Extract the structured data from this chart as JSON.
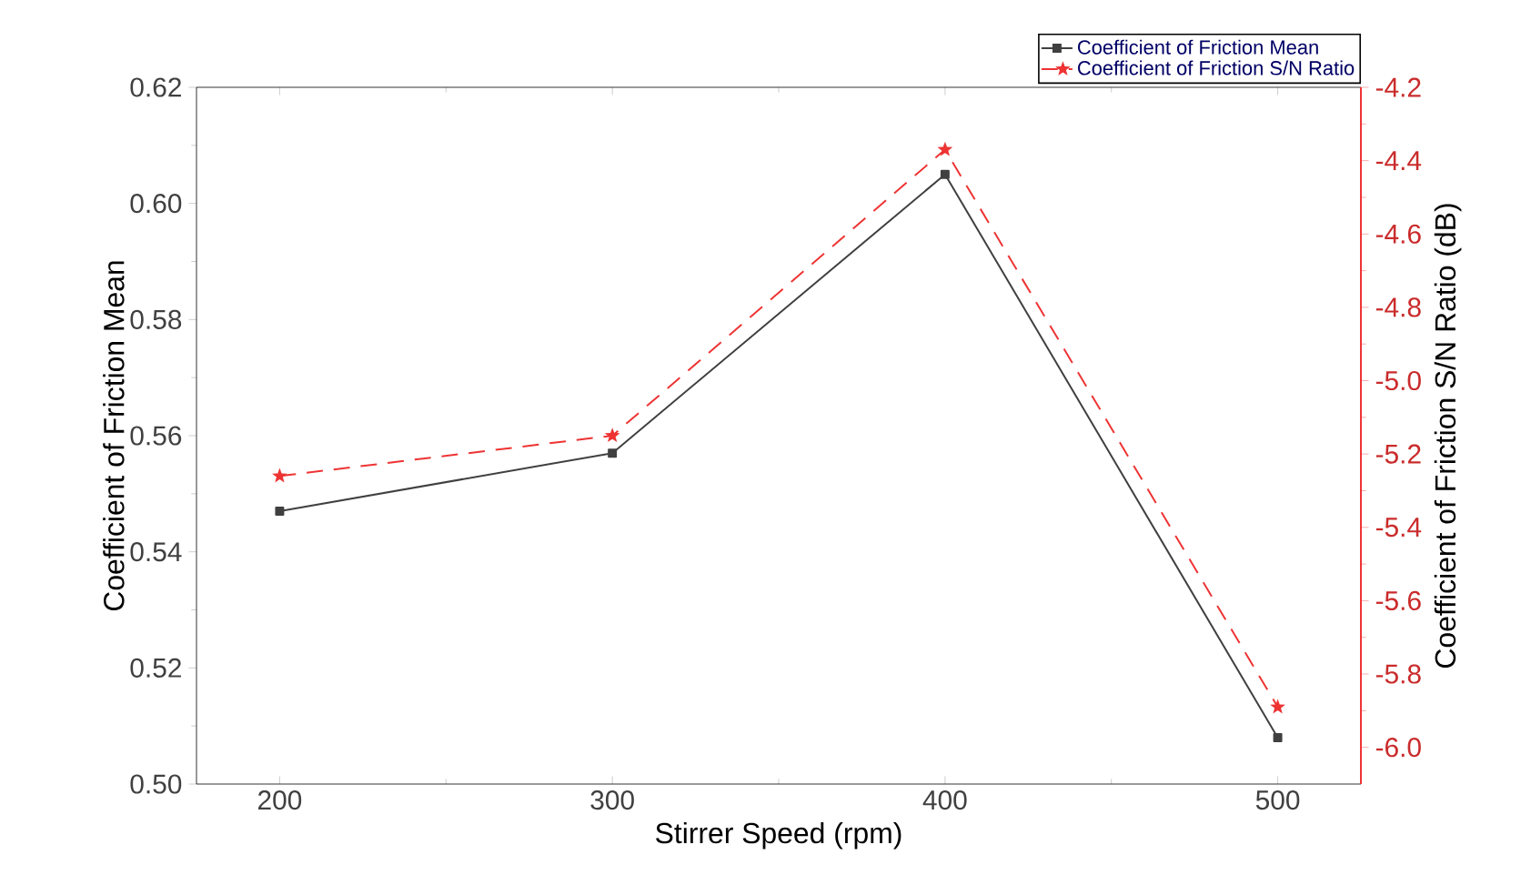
{
  "chart_data": {
    "type": "line",
    "xlabel": "Stirrer Speed (rpm)",
    "ylabel": "Coefficient of Friction Mean",
    "y2label": "Coefficient of Friction S/N Ratio (dB)",
    "x": [
      200,
      300,
      400,
      500
    ],
    "xlim": [
      175,
      525
    ],
    "xticks": [
      200,
      300,
      400,
      500
    ],
    "ylim": [
      0.5,
      0.62
    ],
    "yticks": [
      {
        "value": 0.5,
        "label": "0.50"
      },
      {
        "value": 0.52,
        "label": "0.52"
      },
      {
        "value": 0.54,
        "label": "0.54"
      },
      {
        "value": 0.56,
        "label": "0.56"
      },
      {
        "value": 0.58,
        "label": "0.58"
      },
      {
        "value": 0.6,
        "label": "0.60"
      },
      {
        "value": 0.62,
        "label": "0.62"
      }
    ],
    "y2lim": [
      -6.1,
      -4.2
    ],
    "y2ticks": [
      {
        "value": -6.0,
        "label": "-6.0"
      },
      -5.8,
      -5.6,
      -5.4,
      -5.2,
      {
        "value": -5.0,
        "label": "-5.0"
      },
      -4.8,
      -4.6,
      -4.4,
      -4.2
    ],
    "grid": false,
    "legend": "top right",
    "series": [
      {
        "name": "Coefficient of Friction Mean",
        "color": "#404040",
        "marker": "square",
        "line_style": "solid",
        "values": [
          0.547,
          0.557,
          0.605,
          0.508
        ]
      },
      {
        "name": "Coefficient of Friction S/N Ratio",
        "color": "#ee3333",
        "marker": "star",
        "line_style": "dashed",
        "axis": "y2",
        "values": [
          -5.26,
          -5.15,
          -4.37,
          -5.89
        ]
      }
    ]
  }
}
